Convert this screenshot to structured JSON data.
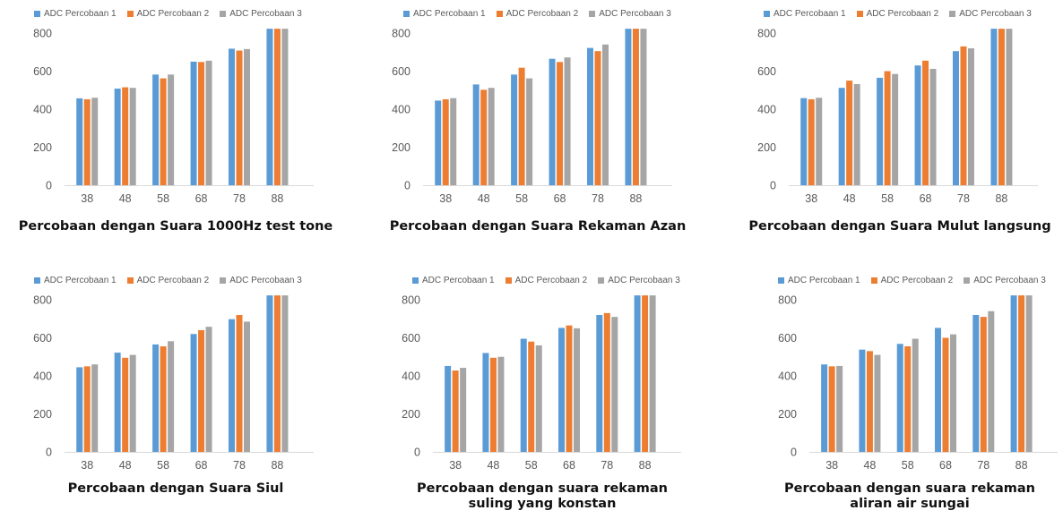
{
  "colors": {
    "series1": "#5B9BD5",
    "series2": "#ED7D31",
    "series3": "#A5A5A5",
    "axis": "#D9D9D9"
  },
  "charts": [
    {
      "title_lines": [
        "Percobaan dengan Suara 1000Hz test tone"
      ],
      "chart_data": {
        "type": "bar",
        "categories": [
          "38",
          "48",
          "58",
          "68",
          "78",
          "88"
        ],
        "series": [
          {
            "name": "ADC Percobaan 1",
            "values": [
              457,
              508,
              582,
              650,
              718,
              823
            ]
          },
          {
            "name": "ADC Percobaan 2",
            "values": [
              452,
              515,
              562,
              648,
              708,
              823
            ]
          },
          {
            "name": "ADC Percobaan 3",
            "values": [
              460,
              512,
              582,
              655,
              716,
              823
            ]
          }
        ],
        "yticks": [
          0,
          200,
          400,
          600,
          800
        ],
        "ylim": [
          0,
          800
        ],
        "legend": "top",
        "grid": false
      }
    },
    {
      "title_lines": [
        "Percobaan dengan Suara Rekaman Azan"
      ],
      "chart_data": {
        "type": "bar",
        "categories": [
          "38",
          "48",
          "58",
          "68",
          "78",
          "88"
        ],
        "series": [
          {
            "name": "ADC Percobaan 1",
            "values": [
              445,
              530,
              582,
              665,
              722,
              823
            ]
          },
          {
            "name": "ADC Percobaan 2",
            "values": [
              452,
              502,
              618,
              648,
              705,
              823
            ]
          },
          {
            "name": "ADC Percobaan 3",
            "values": [
              458,
              512,
              562,
              672,
              740,
              823
            ]
          }
        ],
        "yticks": [
          0,
          200,
          400,
          600,
          800
        ],
        "ylim": [
          0,
          800
        ],
        "legend": "top",
        "grid": false
      }
    },
    {
      "title_lines": [
        "Percobaan dengan Suara Mulut langsung"
      ],
      "chart_data": {
        "type": "bar",
        "categories": [
          "38",
          "48",
          "58",
          "68",
          "78",
          "88"
        ],
        "series": [
          {
            "name": "ADC Percobaan 1",
            "values": [
              458,
              512,
              565,
              630,
              705,
              823
            ]
          },
          {
            "name": "ADC Percobaan 2",
            "values": [
              452,
              550,
              600,
              655,
              730,
              823
            ]
          },
          {
            "name": "ADC Percobaan 3",
            "values": [
              460,
              532,
              585,
              612,
              720,
              823
            ]
          }
        ],
        "yticks": [
          0,
          200,
          400,
          600,
          800
        ],
        "ylim": [
          0,
          800
        ],
        "legend": "top",
        "grid": false
      }
    },
    {
      "title_lines": [
        "Percobaan dengan Suara Siul"
      ],
      "chart_data": {
        "type": "bar",
        "categories": [
          "38",
          "48",
          "58",
          "68",
          "78",
          "88"
        ],
        "series": [
          {
            "name": "ADC Percobaan 1",
            "values": [
              445,
              522,
              565,
              620,
              698,
              823
            ]
          },
          {
            "name": "ADC Percobaan 2",
            "values": [
              450,
              495,
              555,
              640,
              720,
              823
            ]
          },
          {
            "name": "ADC Percobaan 3",
            "values": [
              460,
              510,
              582,
              658,
              685,
              823
            ]
          }
        ],
        "yticks": [
          0,
          200,
          400,
          600,
          800
        ],
        "ylim": [
          0,
          800
        ],
        "legend": "top",
        "grid": false
      }
    },
    {
      "title_lines": [
        "Percobaan dengan suara rekaman",
        "suling yang konstan"
      ],
      "chart_data": {
        "type": "bar",
        "categories": [
          "38",
          "48",
          "58",
          "68",
          "78",
          "88"
        ],
        "series": [
          {
            "name": "ADC Percobaan 1",
            "values": [
              452,
              520,
              595,
              652,
              720,
              823
            ]
          },
          {
            "name": "ADC Percobaan 2",
            "values": [
              428,
              495,
              580,
              665,
              730,
              823
            ]
          },
          {
            "name": "ADC Percobaan 3",
            "values": [
              442,
              500,
              560,
              650,
              710,
              823
            ]
          }
        ],
        "yticks": [
          0,
          200,
          400,
          600,
          800
        ],
        "ylim": [
          0,
          800
        ],
        "legend": "top",
        "grid": false
      }
    },
    {
      "title_lines": [
        "Percobaan dengan suara rekaman",
        "aliran air sungai"
      ],
      "chart_data": {
        "type": "bar",
        "categories": [
          "38",
          "48",
          "58",
          "68",
          "78",
          "88"
        ],
        "series": [
          {
            "name": "ADC Percobaan 1",
            "values": [
              460,
              538,
              568,
              652,
              720,
              823
            ]
          },
          {
            "name": "ADC Percobaan 2",
            "values": [
              450,
              530,
              555,
              600,
              710,
              823
            ]
          },
          {
            "name": "ADC Percobaan 3",
            "values": [
              452,
              510,
              595,
              618,
              740,
              823
            ]
          }
        ],
        "yticks": [
          0,
          200,
          400,
          600,
          800
        ],
        "ylim": [
          0,
          800
        ],
        "legend": "top",
        "grid": false
      }
    }
  ]
}
